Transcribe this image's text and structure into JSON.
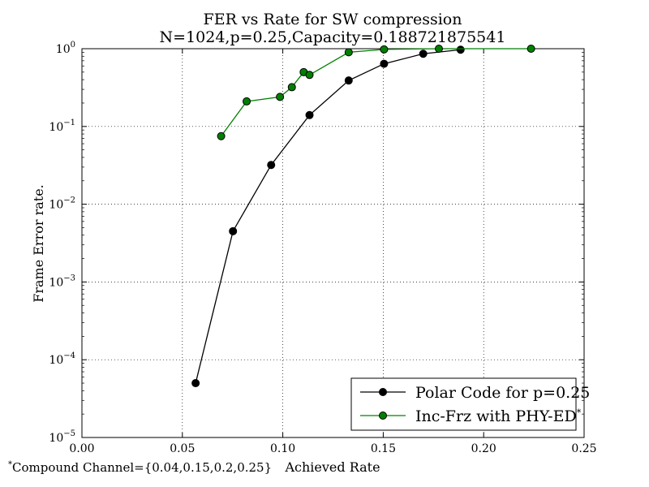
{
  "chart_data": {
    "type": "line",
    "title": "FER vs Rate for SW compression",
    "subtitle": "N=1024,p=0.25,Capacity=0.188721875541",
    "xlabel": "Achieved Rate",
    "ylabel": "Frame Error rate.",
    "footnote": "*Compound Channel={0.04,0.15,0.2,0.25}",
    "xscale": "linear",
    "yscale": "log",
    "xlim": [
      0.0,
      0.25
    ],
    "ylim": [
      1e-05,
      1
    ],
    "grid": true,
    "legend_position": "lower right",
    "x_ticks": [
      "0.00",
      "0.05",
      "0.10",
      "0.15",
      "0.20",
      "0.25"
    ],
    "y_ticks": [
      {
        "base": "10",
        "exp": "0"
      },
      {
        "base": "10",
        "exp": "−1"
      },
      {
        "base": "10",
        "exp": "−2"
      },
      {
        "base": "10",
        "exp": "−3"
      },
      {
        "base": "10",
        "exp": "−4"
      },
      {
        "base": "10",
        "exp": "−5"
      }
    ],
    "series": [
      {
        "name": "Polar Code for p=0.25",
        "color": "#000000",
        "marker": "circle",
        "points": [
          [
            0.0566,
            5e-05
          ],
          [
            0.0752,
            0.0045
          ],
          [
            0.0942,
            0.032
          ],
          [
            0.1133,
            0.14
          ],
          [
            0.1328,
            0.39
          ],
          [
            0.1504,
            0.64
          ],
          [
            0.1699,
            0.86
          ],
          [
            0.1885,
            0.97
          ]
        ]
      },
      {
        "name": "Inc-Frz with PHY-ED",
        "name_superscript": "*",
        "color": "#008000",
        "marker": "circle",
        "points": [
          [
            0.0693,
            0.075
          ],
          [
            0.082,
            0.21
          ],
          [
            0.0986,
            0.24
          ],
          [
            0.1045,
            0.32
          ],
          [
            0.1104,
            0.5
          ],
          [
            0.1133,
            0.46
          ],
          [
            0.1328,
            0.9
          ],
          [
            0.1504,
            0.98
          ],
          [
            0.1777,
            1.0
          ],
          [
            0.2236,
            1.0
          ]
        ]
      }
    ]
  }
}
